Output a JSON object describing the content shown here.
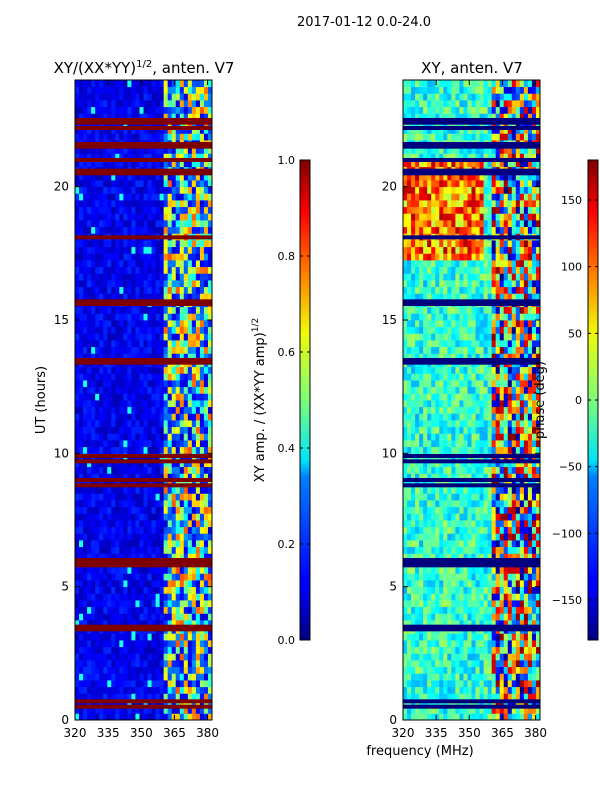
{
  "suptitle": "2017-01-12 0.0-24.0",
  "figure_xlabel": "frequency (MHz)",
  "chart_data": [
    {
      "type": "heatmap",
      "title": "XY/(XX*YY)",
      "title_superscript": "1/2",
      "title_suffix": ", anten. V7",
      "xlabel": "",
      "ylabel": "UT (hours)",
      "xlim": [
        320,
        382
      ],
      "ylim": [
        0,
        24
      ],
      "xticks": [
        320,
        335,
        350,
        365,
        380
      ],
      "xtick_labels": [
        "320",
        "335",
        "350",
        "365",
        "380"
      ],
      "yticks": [
        0,
        5,
        10,
        15,
        20
      ],
      "ytick_labels": [
        "0",
        "5",
        "10",
        "15",
        "20"
      ],
      "colormap": "jet",
      "colorbar": {
        "label": "XY amp. / (XX*YY amp)",
        "label_superscript": "1/2",
        "range": [
          0.0,
          1.0
        ],
        "ticks": [
          0.0,
          0.2,
          0.4,
          0.6,
          0.8,
          1.0
        ],
        "tick_labels": [
          "0.0",
          "0.2",
          "0.4",
          "0.6",
          "0.8",
          "1.0"
        ]
      },
      "flagged_bands_hours": [
        0.5,
        0.7,
        3.4,
        3.5,
        5.8,
        5.9,
        6.0,
        8.8,
        9.0,
        9.7,
        9.9,
        13.4,
        13.5,
        15.6,
        15.7,
        18.1,
        20.5,
        20.6,
        21.0,
        21.5,
        21.6,
        22.2,
        22.4,
        22.5
      ]
    },
    {
      "type": "heatmap",
      "title": "XY, anten. V7",
      "xlabel": "",
      "ylabel": "",
      "xlim": [
        320,
        382
      ],
      "ylim": [
        0,
        24
      ],
      "xticks": [
        320,
        335,
        350,
        365,
        380
      ],
      "xtick_labels": [
        "320",
        "335",
        "350",
        "365",
        "380"
      ],
      "yticks": [
        0,
        5,
        10,
        15,
        20
      ],
      "ytick_labels": [
        "0",
        "5",
        "10",
        "15",
        "20"
      ],
      "colormap": "jet",
      "colorbar": {
        "label": "phase (deg)",
        "range": [
          -180,
          180
        ],
        "ticks": [
          -150,
          -100,
          -50,
          0,
          50,
          100,
          150
        ],
        "tick_labels": [
          "−150",
          "−100",
          "−50",
          "0",
          "50",
          "100",
          "150"
        ]
      },
      "flagged_bands_hours": [
        0.5,
        0.7,
        3.4,
        3.5,
        5.8,
        5.9,
        6.0,
        8.8,
        9.0,
        9.7,
        9.9,
        13.4,
        13.5,
        15.6,
        15.7,
        18.1,
        20.5,
        20.6,
        21.0,
        21.5,
        21.6,
        22.2,
        22.4,
        22.5
      ]
    }
  ]
}
